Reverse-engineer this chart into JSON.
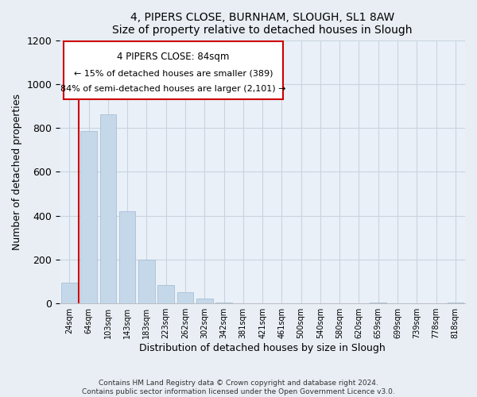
{
  "title": "4, PIPERS CLOSE, BURNHAM, SLOUGH, SL1 8AW",
  "subtitle": "Size of property relative to detached houses in Slough",
  "xlabel": "Distribution of detached houses by size in Slough",
  "ylabel": "Number of detached properties",
  "bar_labels": [
    "24sqm",
    "64sqm",
    "103sqm",
    "143sqm",
    "183sqm",
    "223sqm",
    "262sqm",
    "302sqm",
    "342sqm",
    "381sqm",
    "421sqm",
    "461sqm",
    "500sqm",
    "540sqm",
    "580sqm",
    "620sqm",
    "659sqm",
    "699sqm",
    "739sqm",
    "778sqm",
    "818sqm"
  ],
  "bar_values": [
    95,
    785,
    862,
    420,
    200,
    85,
    52,
    22,
    5,
    2,
    1,
    0,
    0,
    0,
    0,
    0,
    5,
    0,
    0,
    0,
    5
  ],
  "bar_color": "#c5d8ea",
  "bar_edge_color": "#a0b8d0",
  "vline_x_index": 0.5,
  "vline_color": "#cc0000",
  "annotation_title": "4 PIPERS CLOSE: 84sqm",
  "annotation_line1": "← 15% of detached houses are smaller (389)",
  "annotation_line2": "84% of semi-detached houses are larger (2,101) →",
  "ylim": [
    0,
    1200
  ],
  "yticks": [
    0,
    200,
    400,
    600,
    800,
    1000,
    1200
  ],
  "footer1": "Contains HM Land Registry data © Crown copyright and database right 2024.",
  "footer2": "Contains public sector information licensed under the Open Government Licence v3.0.",
  "bg_color": "#e8eef4",
  "plot_bg_color": "#eaf0f8",
  "grid_color": "#c8d4e0"
}
